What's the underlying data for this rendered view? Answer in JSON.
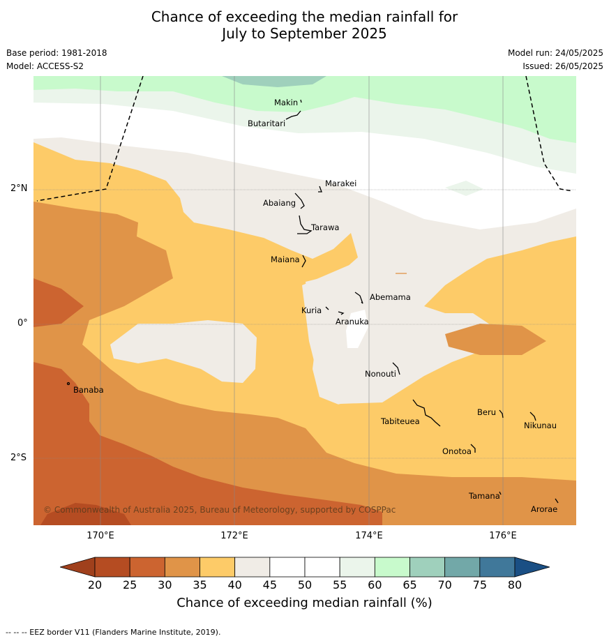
{
  "title": {
    "line1": "Chance of exceeding the median rainfall for",
    "line2": "July to September 2025"
  },
  "meta": {
    "base_period": "Base period: 1981-2018",
    "model": "Model: ACCESS-S2",
    "model_run": "Model run: 24/05/2025",
    "issued": "Issued: 26/05/2025"
  },
  "axes": {
    "lat_labels": [
      "2°N",
      "0°",
      "2°S"
    ],
    "lon_labels": [
      "170°E",
      "172°E",
      "174°E",
      "176°E"
    ]
  },
  "islands": [
    "Makin",
    "Butaritari",
    "Marakei",
    "Abaiang",
    "Tarawa",
    "Maiana",
    "Abemama",
    "Kuria",
    "Aranuka",
    "Banaba",
    "Nonouti",
    "Beru",
    "Tabiteuea",
    "Nikunau",
    "Onotoa",
    "Tamana",
    "Arorae"
  ],
  "copyright": "© Commonwealth of Australia 2025, Bureau of Meteorology, supported by COSPPac",
  "colorbar": {
    "ticks": [
      "20",
      "25",
      "30",
      "35",
      "40",
      "45",
      "50",
      "55",
      "60",
      "65",
      "70",
      "75",
      "80"
    ],
    "label": "Chance of exceeding median rainfall (%)",
    "colors": [
      "#a0401c",
      "#b54c22",
      "#cc6430",
      "#e09448",
      "#fdcb68",
      "#f0ece6",
      "#ffffff",
      "#ffffff",
      "#ebf5eb",
      "#c8facc",
      "#9fd0bc",
      "#72a8a8",
      "#40789a",
      "#1a4f84"
    ]
  },
  "eez_note": "--  --  -- EEZ border V11 (Flanders Marine Institute, 2019)."
}
